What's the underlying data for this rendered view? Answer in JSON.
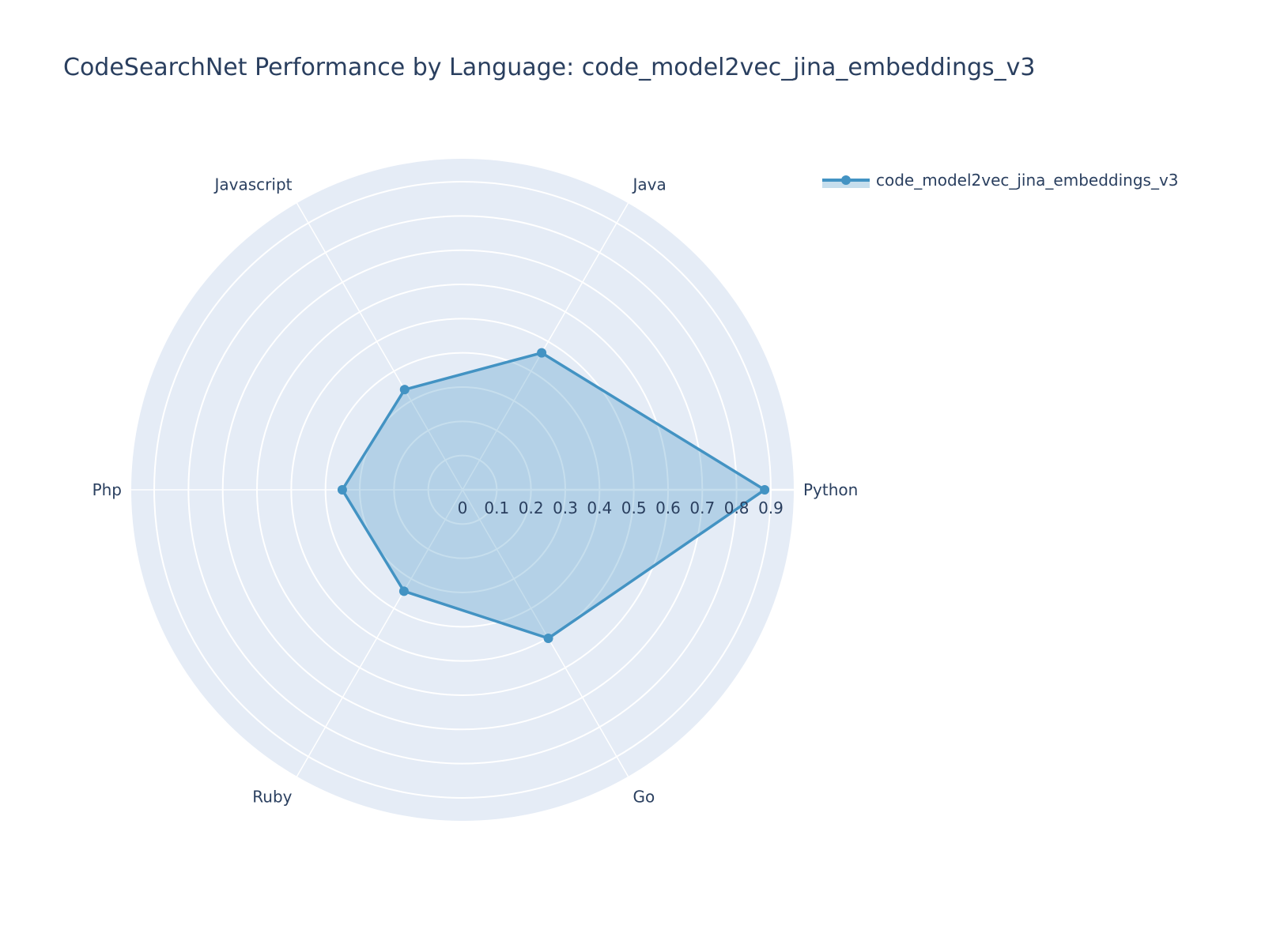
{
  "title": "CodeSearchNet Performance by Language: code_model2vec_jina_embeddings_v3",
  "legend": {
    "label": "code_model2vec_jina_embeddings_v3"
  },
  "colors": {
    "line": "#4393c3",
    "fill": "rgba(67,147,195,0.3)",
    "polar_bg": "#e5ecf6",
    "grid": "#ffffff",
    "text": "#2a3f5f"
  },
  "chart_data": {
    "type": "radar",
    "title": "CodeSearchNet Performance by Language: code_model2vec_jina_embeddings_v3",
    "categories": [
      "Python",
      "Java",
      "Javascript",
      "Php",
      "Ruby",
      "Go"
    ],
    "series": [
      {
        "name": "code_model2vec_jina_embeddings_v3",
        "values": [
          0.882,
          0.462,
          0.338,
          0.351,
          0.342,
          0.501
        ]
      }
    ],
    "radial_ticks": [
      "0",
      "0.1",
      "0.2",
      "0.3",
      "0.4",
      "0.5",
      "0.6",
      "0.7",
      "0.8",
      "0.9"
    ],
    "radial_range": [
      0,
      0.967
    ],
    "grid": true,
    "legend_position": "top-right"
  }
}
